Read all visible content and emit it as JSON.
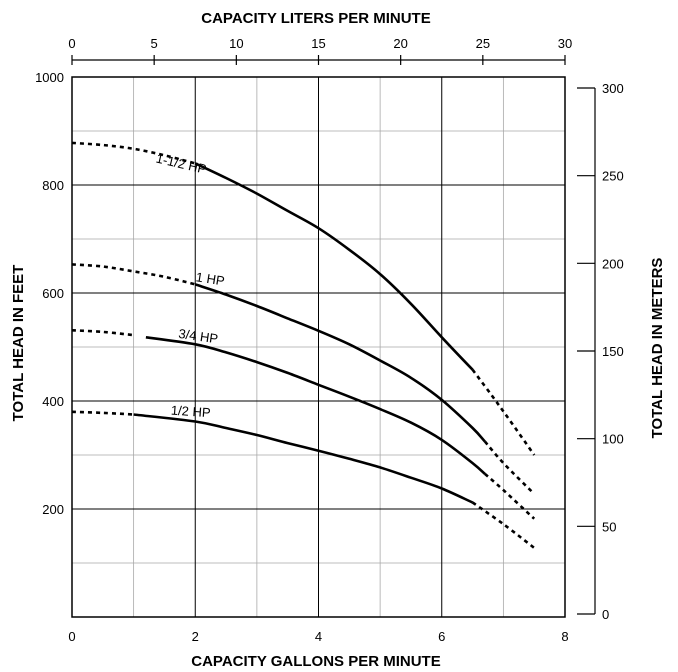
{
  "chart_data": {
    "type": "line",
    "title": "CAPACITY LITERS PER MINUTE",
    "xlabel": "CAPACITY GALLONS PER MINUTE",
    "ylabel": "TOTAL HEAD IN FEET",
    "y2label": "TOTAL HEAD IN METERS",
    "xlim": [
      0,
      8
    ],
    "ylim": [
      0,
      1000
    ],
    "x2lim": [
      0,
      30
    ],
    "y2lim": [
      0,
      300
    ],
    "x_ticks": [
      "0",
      "2",
      "4",
      "6",
      "8"
    ],
    "y_ticks": [
      "200",
      "400",
      "600",
      "800",
      "1000"
    ],
    "x2_ticks": [
      "0",
      "5",
      "10",
      "15",
      "20",
      "25",
      "30"
    ],
    "y2_ticks": [
      "0",
      "50",
      "100",
      "150",
      "200",
      "250",
      "300"
    ],
    "grid": true,
    "series": [
      {
        "name": "1-1/2 HP",
        "dashed_start": [
          [
            0,
            878
          ],
          [
            0.5,
            874
          ],
          [
            1,
            867
          ],
          [
            1.5,
            855
          ],
          [
            2,
            840
          ]
        ],
        "solid": [
          [
            2,
            840
          ],
          [
            2.5,
            813
          ],
          [
            3,
            784
          ],
          [
            3.5,
            752
          ],
          [
            4,
            720
          ],
          [
            4.5,
            680
          ],
          [
            5,
            635
          ],
          [
            5.5,
            580
          ],
          [
            6,
            518
          ],
          [
            6.5,
            458
          ]
        ],
        "dashed_end": [
          [
            6.5,
            458
          ],
          [
            6.8,
            412
          ],
          [
            7.1,
            365
          ],
          [
            7.5,
            300
          ]
        ]
      },
      {
        "name": "1 HP",
        "dashed_start": [
          [
            0,
            653
          ],
          [
            0.5,
            649
          ],
          [
            1,
            640
          ],
          [
            1.5,
            630
          ],
          [
            2,
            616
          ]
        ],
        "solid": [
          [
            2,
            616
          ],
          [
            2.5,
            597
          ],
          [
            3,
            576
          ],
          [
            3.5,
            553
          ],
          [
            4,
            530
          ],
          [
            4.5,
            505
          ],
          [
            5,
            475
          ],
          [
            5.5,
            443
          ],
          [
            6,
            402
          ],
          [
            6.5,
            350
          ],
          [
            6.7,
            325
          ]
        ],
        "dashed_end": [
          [
            6.7,
            325
          ],
          [
            7,
            285
          ],
          [
            7.5,
            228
          ]
        ]
      },
      {
        "name": "3/4 HP",
        "dashed_start": [
          [
            0,
            531
          ],
          [
            0.5,
            528
          ],
          [
            1,
            522
          ]
        ],
        "solid": [
          [
            1.2,
            518
          ],
          [
            2,
            505
          ],
          [
            2.5,
            490
          ],
          [
            3,
            472
          ],
          [
            3.5,
            452
          ],
          [
            4,
            430
          ],
          [
            4.5,
            408
          ],
          [
            5,
            385
          ],
          [
            5.5,
            360
          ],
          [
            6,
            328
          ],
          [
            6.5,
            285
          ],
          [
            6.7,
            265
          ]
        ],
        "dashed_end": [
          [
            6.7,
            265
          ],
          [
            7,
            235
          ],
          [
            7.5,
            182
          ]
        ]
      },
      {
        "name": "1/2 HP",
        "dashed_start": [
          [
            0,
            380
          ],
          [
            0.5,
            378
          ],
          [
            1,
            375
          ]
        ],
        "solid": [
          [
            1,
            375
          ],
          [
            2,
            362
          ],
          [
            2.5,
            350
          ],
          [
            3,
            337
          ],
          [
            3.5,
            322
          ],
          [
            4,
            308
          ],
          [
            4.5,
            293
          ],
          [
            5,
            277
          ],
          [
            5.5,
            258
          ],
          [
            6,
            238
          ],
          [
            6.5,
            212
          ]
        ],
        "dashed_end": [
          [
            6.5,
            212
          ],
          [
            7,
            172
          ],
          [
            7.5,
            128
          ]
        ]
      }
    ]
  }
}
